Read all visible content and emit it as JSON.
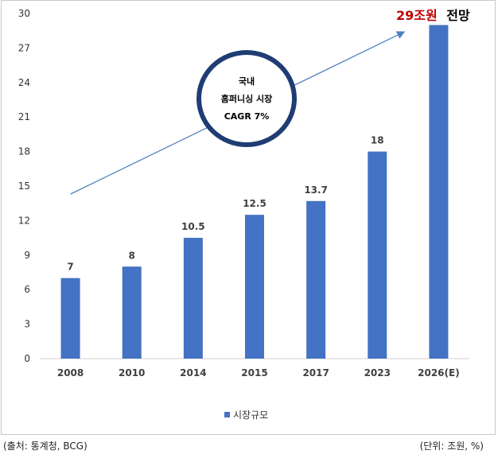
{
  "chart_data": {
    "type": "bar",
    "categories": [
      "2008",
      "2010",
      "2014",
      "2015",
      "2017",
      "2023",
      "2026(E)"
    ],
    "series": [
      {
        "name": "시장규모",
        "values": [
          7,
          8,
          10.5,
          12.5,
          13.7,
          18,
          29
        ]
      }
    ],
    "data_labels": [
      "7",
      "8",
      "10.5",
      "12.5",
      "13.7",
      "18",
      ""
    ],
    "yticks": [
      "0",
      "3",
      "6",
      "9",
      "12",
      "15",
      "18",
      "21",
      "24",
      "27",
      "30"
    ],
    "ylim": [
      0,
      30
    ],
    "legend_position": "bottom",
    "annotation": {
      "highlight_value": "29조원",
      "highlight_suffix": "전망",
      "circle_lines": [
        "국내",
        "홈퍼니싱 시장",
        "CAGR 7%"
      ]
    },
    "arrow": {
      "from": {
        "x": "2008",
        "y": 14.3
      },
      "to": {
        "x": "2026(E)",
        "y": 28.9
      }
    }
  },
  "colors": {
    "bar": "#4472c4",
    "arrow": "#4f81bd",
    "circle": "#1f3d73",
    "highlight": "#c00000"
  },
  "footer": {
    "source": "(출처: 통계청, BCG)",
    "unit": "(단위: 조원, %)"
  }
}
